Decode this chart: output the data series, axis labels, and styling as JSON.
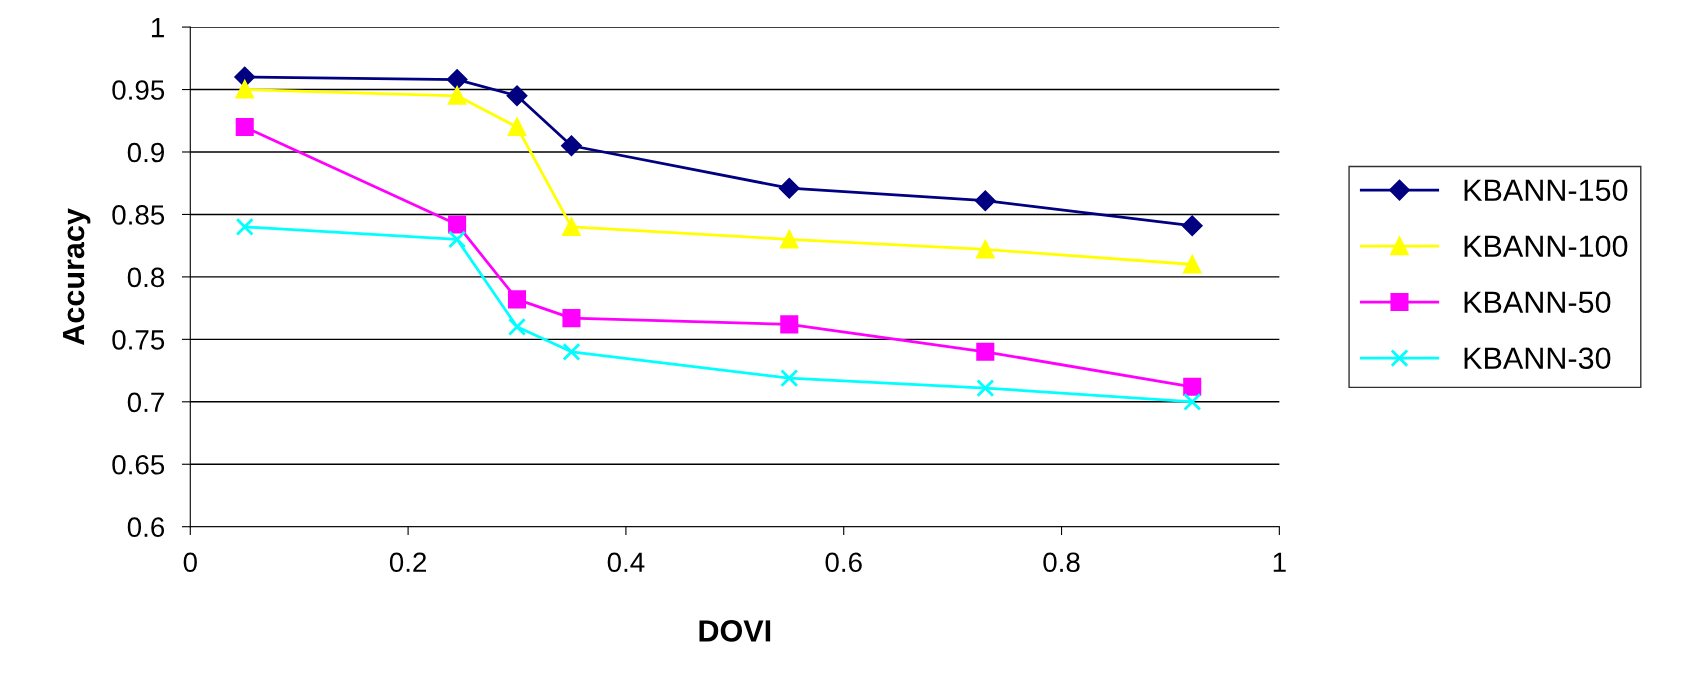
{
  "chart_data": {
    "type": "line",
    "xlabel": "DOVI",
    "ylabel": "Accuracy",
    "x": [
      0.05,
      0.245,
      0.3,
      0.35,
      0.55,
      0.73,
      0.92
    ],
    "series": [
      {
        "name": "KBANN-150",
        "color": "#000080",
        "marker": "diamond",
        "values": [
          0.96,
          0.958,
          0.945,
          0.905,
          0.871,
          0.861,
          0.841
        ]
      },
      {
        "name": "KBANN-100",
        "color": "#ffff00",
        "marker": "triangle",
        "values": [
          0.95,
          0.945,
          0.92,
          0.84,
          0.83,
          0.822,
          0.81
        ]
      },
      {
        "name": "KBANN-50",
        "color": "#ff00ff",
        "marker": "square",
        "values": [
          0.92,
          0.842,
          0.782,
          0.767,
          0.762,
          0.74,
          0.712
        ]
      },
      {
        "name": "KBANN-30",
        "color": "#00ffff",
        "marker": "cross",
        "values": [
          0.84,
          0.83,
          0.76,
          0.74,
          0.719,
          0.711,
          0.7
        ]
      }
    ],
    "xlim": [
      0,
      1
    ],
    "xticks": [
      0,
      0.2,
      0.4,
      0.6,
      0.8,
      1
    ],
    "ylim": [
      0.6,
      1
    ],
    "yticks": [
      0.6,
      0.65,
      0.7,
      0.75,
      0.8,
      0.85,
      0.9,
      0.95,
      1
    ],
    "grid": "y",
    "legend": "right",
    "line_style": "solid"
  }
}
